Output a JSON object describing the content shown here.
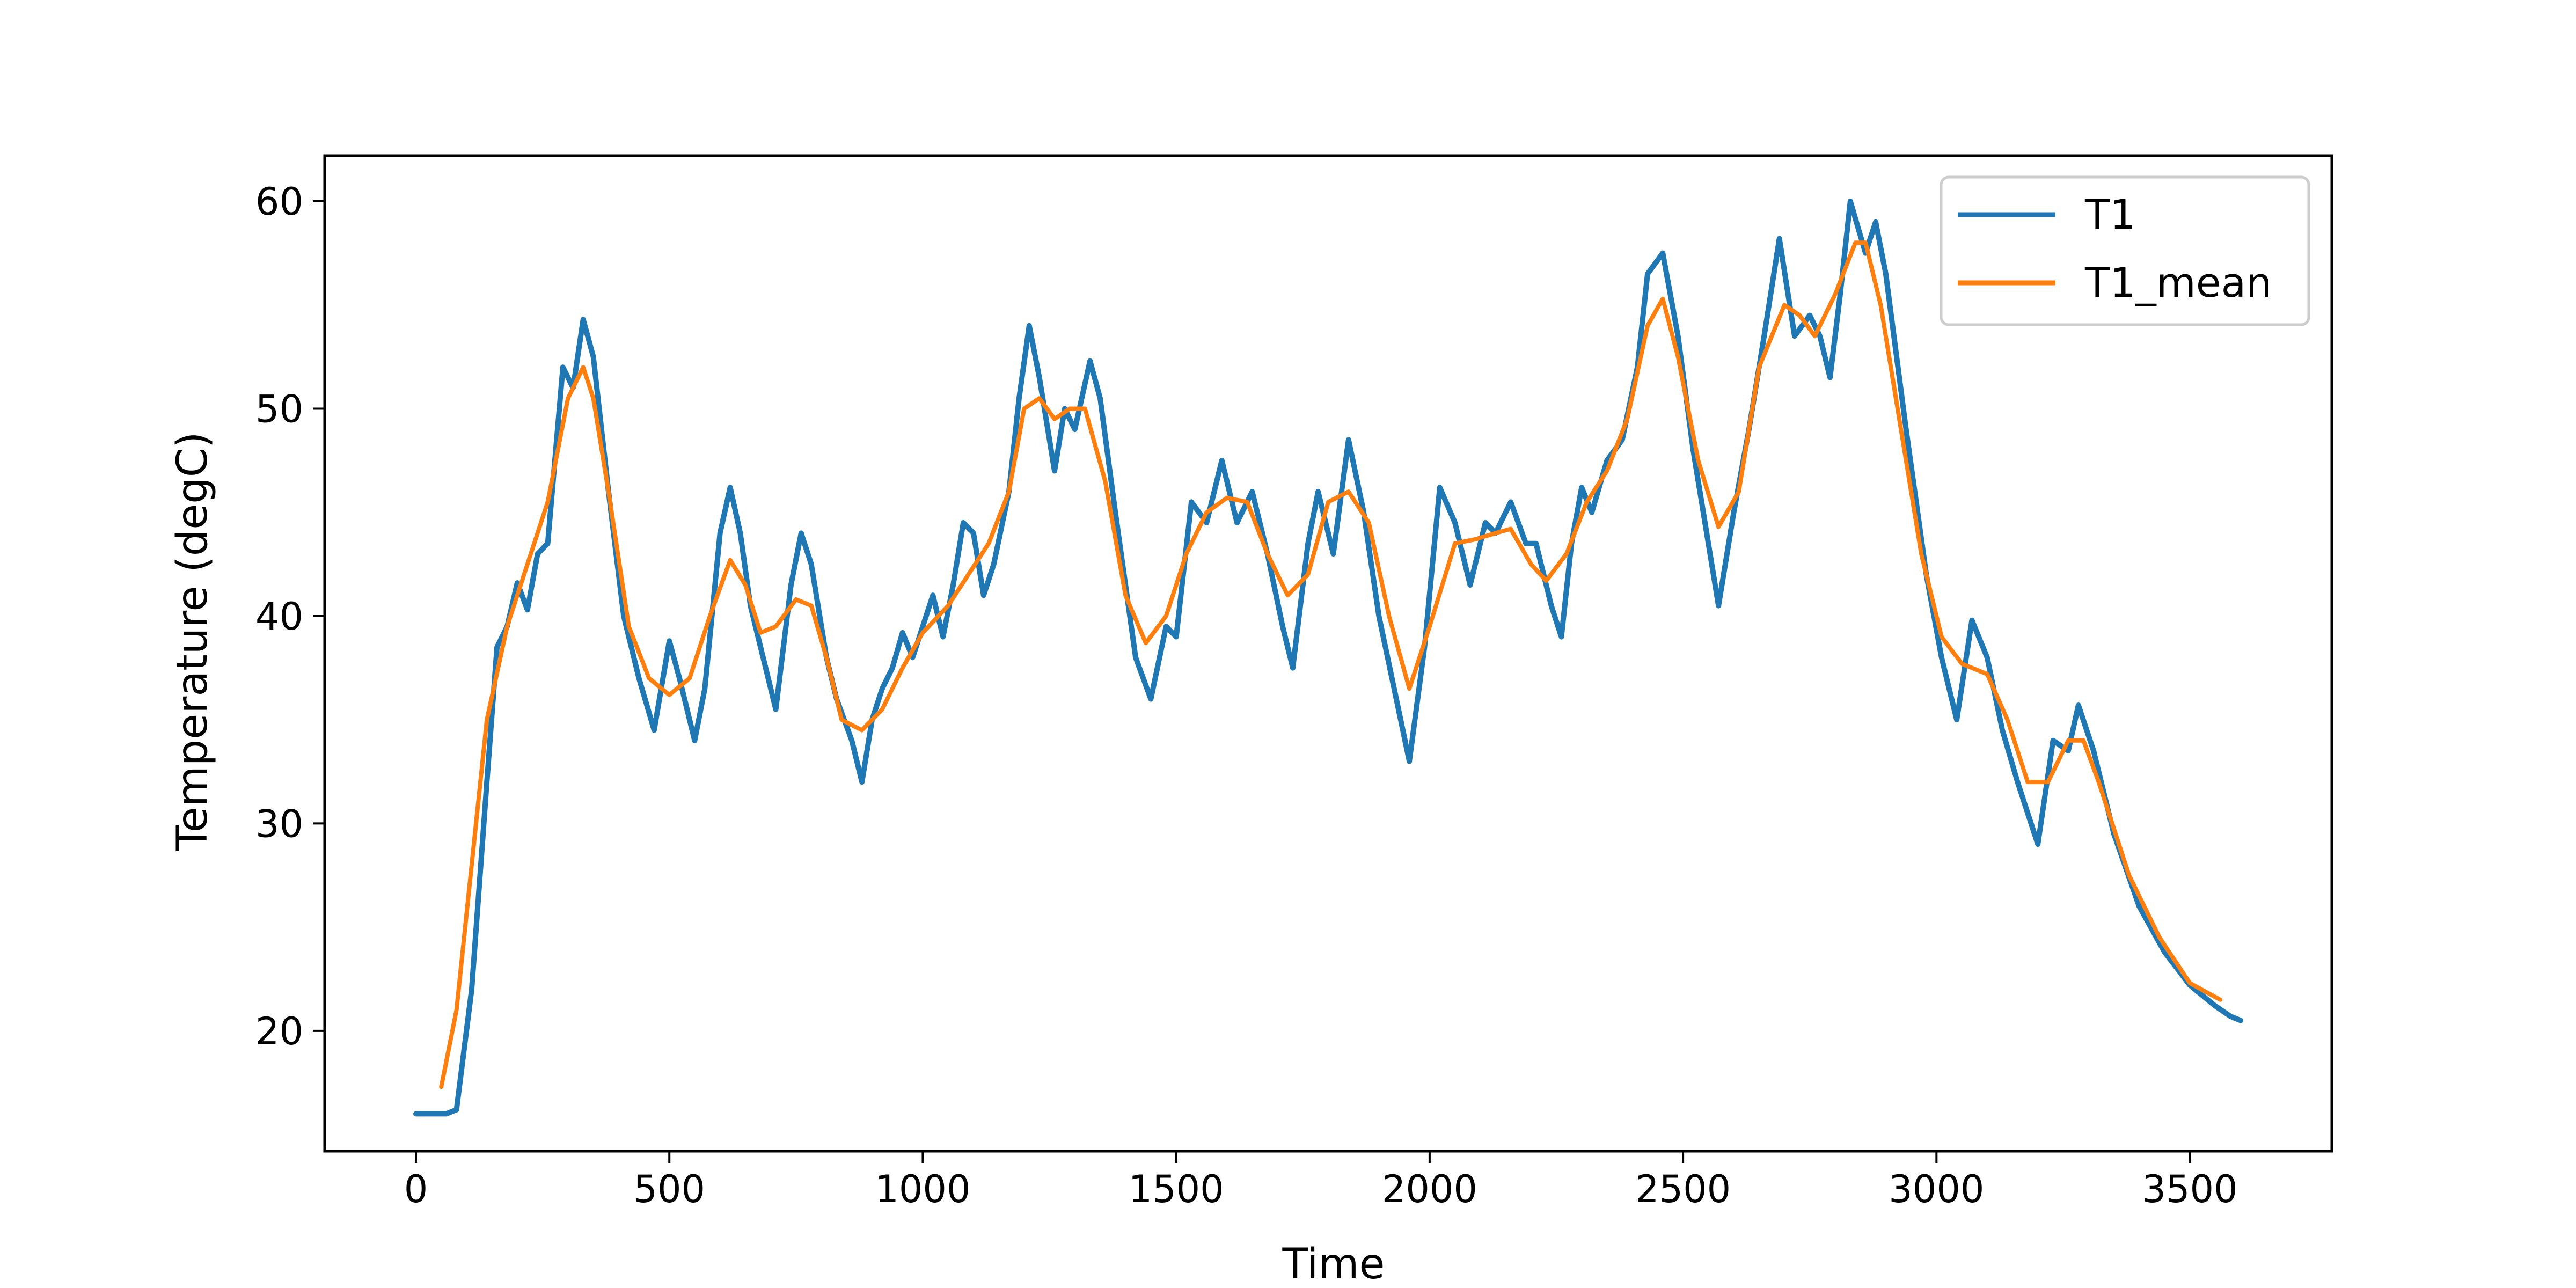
{
  "chart_data": {
    "type": "line",
    "title": "",
    "xlabel": "Time",
    "ylabel": "Temperature (degC)",
    "xlim": [
      -180,
      3780
    ],
    "ylim": [
      14.2,
      62.2
    ],
    "xticks": [
      0,
      500,
      1000,
      1500,
      2000,
      2500,
      3000,
      3500
    ],
    "yticks": [
      20,
      30,
      40,
      50,
      60
    ],
    "grid": false,
    "legend": {
      "position": "top-right"
    },
    "series": [
      {
        "name": "T1",
        "color": "#1f77b4",
        "points": [
          [
            0,
            16.0
          ],
          [
            60,
            16.0
          ],
          [
            80,
            16.2
          ],
          [
            110,
            22.0
          ],
          [
            140,
            32.0
          ],
          [
            160,
            38.5
          ],
          [
            180,
            39.5
          ],
          [
            200,
            41.6
          ],
          [
            220,
            40.3
          ],
          [
            240,
            43.0
          ],
          [
            260,
            43.5
          ],
          [
            290,
            52.0
          ],
          [
            310,
            51.0
          ],
          [
            330,
            54.3
          ],
          [
            350,
            52.5
          ],
          [
            380,
            46.0
          ],
          [
            410,
            40.0
          ],
          [
            440,
            37.0
          ],
          [
            470,
            34.5
          ],
          [
            500,
            38.8
          ],
          [
            520,
            37.0
          ],
          [
            550,
            34.0
          ],
          [
            570,
            36.5
          ],
          [
            600,
            44.0
          ],
          [
            620,
            46.2
          ],
          [
            640,
            44.0
          ],
          [
            660,
            40.5
          ],
          [
            690,
            37.5
          ],
          [
            710,
            35.5
          ],
          [
            740,
            41.5
          ],
          [
            760,
            44.0
          ],
          [
            780,
            42.5
          ],
          [
            810,
            38.0
          ],
          [
            830,
            36.0
          ],
          [
            860,
            34.0
          ],
          [
            880,
            32.0
          ],
          [
            900,
            35.0
          ],
          [
            920,
            36.5
          ],
          [
            940,
            37.5
          ],
          [
            960,
            39.2
          ],
          [
            980,
            38.0
          ],
          [
            1000,
            39.5
          ],
          [
            1020,
            41.0
          ],
          [
            1040,
            39.0
          ],
          [
            1060,
            41.5
          ],
          [
            1080,
            44.5
          ],
          [
            1100,
            44.0
          ],
          [
            1120,
            41.0
          ],
          [
            1140,
            42.5
          ],
          [
            1170,
            46.0
          ],
          [
            1190,
            50.5
          ],
          [
            1210,
            54.0
          ],
          [
            1230,
            51.5
          ],
          [
            1260,
            47.0
          ],
          [
            1280,
            50.0
          ],
          [
            1300,
            49.0
          ],
          [
            1330,
            52.3
          ],
          [
            1350,
            50.5
          ],
          [
            1380,
            45.0
          ],
          [
            1420,
            38.0
          ],
          [
            1450,
            36.0
          ],
          [
            1480,
            39.5
          ],
          [
            1500,
            39.0
          ],
          [
            1530,
            45.5
          ],
          [
            1560,
            44.5
          ],
          [
            1590,
            47.5
          ],
          [
            1620,
            44.5
          ],
          [
            1650,
            46.0
          ],
          [
            1680,
            43.0
          ],
          [
            1710,
            39.5
          ],
          [
            1730,
            37.5
          ],
          [
            1760,
            43.5
          ],
          [
            1780,
            46.0
          ],
          [
            1810,
            43.0
          ],
          [
            1840,
            48.5
          ],
          [
            1870,
            45.0
          ],
          [
            1900,
            40.0
          ],
          [
            1930,
            36.5
          ],
          [
            1960,
            33.0
          ],
          [
            1990,
            38.5
          ],
          [
            2020,
            46.2
          ],
          [
            2050,
            44.5
          ],
          [
            2080,
            41.5
          ],
          [
            2110,
            44.5
          ],
          [
            2130,
            44.0
          ],
          [
            2160,
            45.5
          ],
          [
            2190,
            43.5
          ],
          [
            2210,
            43.5
          ],
          [
            2240,
            40.5
          ],
          [
            2260,
            39.0
          ],
          [
            2280,
            43.5
          ],
          [
            2300,
            46.2
          ],
          [
            2320,
            45.0
          ],
          [
            2350,
            47.5
          ],
          [
            2380,
            48.5
          ],
          [
            2410,
            52.0
          ],
          [
            2430,
            56.5
          ],
          [
            2460,
            57.5
          ],
          [
            2490,
            53.5
          ],
          [
            2520,
            48.0
          ],
          [
            2550,
            43.5
          ],
          [
            2570,
            40.5
          ],
          [
            2600,
            45.0
          ],
          [
            2630,
            49.0
          ],
          [
            2660,
            53.5
          ],
          [
            2690,
            58.2
          ],
          [
            2720,
            53.5
          ],
          [
            2750,
            54.5
          ],
          [
            2770,
            53.5
          ],
          [
            2790,
            51.5
          ],
          [
            2810,
            55.5
          ],
          [
            2830,
            60.0
          ],
          [
            2860,
            57.5
          ],
          [
            2880,
            59.0
          ],
          [
            2900,
            56.5
          ],
          [
            2940,
            49.0
          ],
          [
            2980,
            42.0
          ],
          [
            3010,
            38.0
          ],
          [
            3040,
            35.0
          ],
          [
            3070,
            39.8
          ],
          [
            3100,
            38.0
          ],
          [
            3130,
            34.5
          ],
          [
            3160,
            32.0
          ],
          [
            3200,
            29.0
          ],
          [
            3230,
            34.0
          ],
          [
            3260,
            33.5
          ],
          [
            3280,
            35.7
          ],
          [
            3310,
            33.5
          ],
          [
            3350,
            29.5
          ],
          [
            3400,
            26.0
          ],
          [
            3450,
            23.8
          ],
          [
            3500,
            22.2
          ],
          [
            3550,
            21.2
          ],
          [
            3580,
            20.7
          ],
          [
            3600,
            20.5
          ]
        ]
      },
      {
        "name": "T1_mean",
        "color": "#ff7f0e",
        "points": [
          [
            50,
            17.3
          ],
          [
            80,
            21.0
          ],
          [
            110,
            28.0
          ],
          [
            140,
            35.0
          ],
          [
            180,
            39.5
          ],
          [
            220,
            42.5
          ],
          [
            260,
            45.5
          ],
          [
            300,
            50.5
          ],
          [
            330,
            52.0
          ],
          [
            350,
            50.5
          ],
          [
            380,
            46.0
          ],
          [
            420,
            39.5
          ],
          [
            460,
            37.0
          ],
          [
            500,
            36.2
          ],
          [
            540,
            37.0
          ],
          [
            580,
            40.0
          ],
          [
            620,
            42.7
          ],
          [
            650,
            41.5
          ],
          [
            680,
            39.2
          ],
          [
            710,
            39.5
          ],
          [
            750,
            40.8
          ],
          [
            780,
            40.5
          ],
          [
            810,
            38.0
          ],
          [
            840,
            35.0
          ],
          [
            880,
            34.5
          ],
          [
            920,
            35.5
          ],
          [
            960,
            37.5
          ],
          [
            1000,
            39.2
          ],
          [
            1050,
            40.5
          ],
          [
            1090,
            42.0
          ],
          [
            1130,
            43.5
          ],
          [
            1170,
            46.0
          ],
          [
            1200,
            50.0
          ],
          [
            1230,
            50.5
          ],
          [
            1260,
            49.5
          ],
          [
            1290,
            50.0
          ],
          [
            1320,
            50.0
          ],
          [
            1360,
            46.5
          ],
          [
            1400,
            41.0
          ],
          [
            1440,
            38.7
          ],
          [
            1480,
            40.0
          ],
          [
            1520,
            43.0
          ],
          [
            1560,
            45.0
          ],
          [
            1600,
            45.7
          ],
          [
            1640,
            45.5
          ],
          [
            1680,
            43.0
          ],
          [
            1720,
            41.0
          ],
          [
            1760,
            42.0
          ],
          [
            1800,
            45.5
          ],
          [
            1840,
            46.0
          ],
          [
            1880,
            44.5
          ],
          [
            1920,
            40.0
          ],
          [
            1960,
            36.5
          ],
          [
            2000,
            39.5
          ],
          [
            2050,
            43.5
          ],
          [
            2090,
            43.7
          ],
          [
            2130,
            44.0
          ],
          [
            2160,
            44.2
          ],
          [
            2200,
            42.5
          ],
          [
            2230,
            41.7
          ],
          [
            2270,
            43.0
          ],
          [
            2310,
            45.5
          ],
          [
            2350,
            47.0
          ],
          [
            2390,
            49.5
          ],
          [
            2430,
            54.0
          ],
          [
            2460,
            55.3
          ],
          [
            2490,
            52.5
          ],
          [
            2530,
            47.5
          ],
          [
            2570,
            44.3
          ],
          [
            2610,
            46.0
          ],
          [
            2650,
            52.0
          ],
          [
            2700,
            55.0
          ],
          [
            2730,
            54.5
          ],
          [
            2760,
            53.5
          ],
          [
            2800,
            55.5
          ],
          [
            2840,
            58.0
          ],
          [
            2860,
            58.0
          ],
          [
            2890,
            55.0
          ],
          [
            2930,
            49.0
          ],
          [
            2970,
            43.0
          ],
          [
            3010,
            39.0
          ],
          [
            3050,
            37.7
          ],
          [
            3100,
            37.2
          ],
          [
            3140,
            35.0
          ],
          [
            3180,
            32.0
          ],
          [
            3220,
            32.0
          ],
          [
            3260,
            34.0
          ],
          [
            3290,
            34.0
          ],
          [
            3320,
            32.0
          ],
          [
            3380,
            27.5
          ],
          [
            3440,
            24.5
          ],
          [
            3500,
            22.3
          ],
          [
            3560,
            21.5
          ]
        ]
      }
    ]
  }
}
